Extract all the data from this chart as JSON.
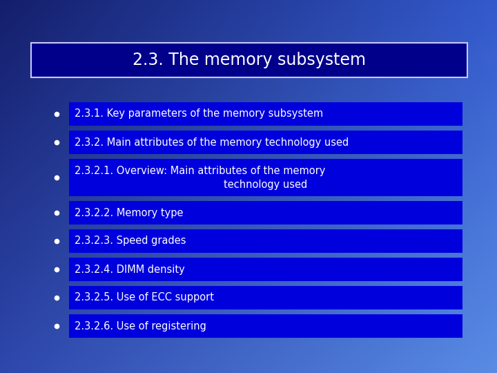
{
  "title": "2.3. The memory subsystem",
  "title_box_color": "#00008B",
  "title_text_color": "#ffffff",
  "title_border_color": "#c8c8ff",
  "bullet_box_color": "#0000dd",
  "bullet_text_color": "#ffffff",
  "bullet_dot_color": "#ffffff",
  "items": [
    "2.3.1. Key parameters of the memory subsystem",
    "2.3.2. Main attributes of the memory technology used",
    "2.3.2.1. Overview: Main attributes of the memory\ntechnology used",
    "2.3.2.2. Memory type",
    "2.3.2.3. Speed grades",
    "2.3.2.4. DIMM density",
    "2.3.2.5. Use of ECC support",
    "2.3.2.6. Use of registering"
  ],
  "item_font_size": 10.5,
  "title_font_size": 17,
  "bg_topleft": [
    0.08,
    0.12,
    0.42
  ],
  "bg_topright": [
    0.2,
    0.35,
    0.8
  ],
  "bg_botleft": [
    0.18,
    0.28,
    0.68
  ],
  "bg_botright": [
    0.35,
    0.55,
    0.9
  ]
}
